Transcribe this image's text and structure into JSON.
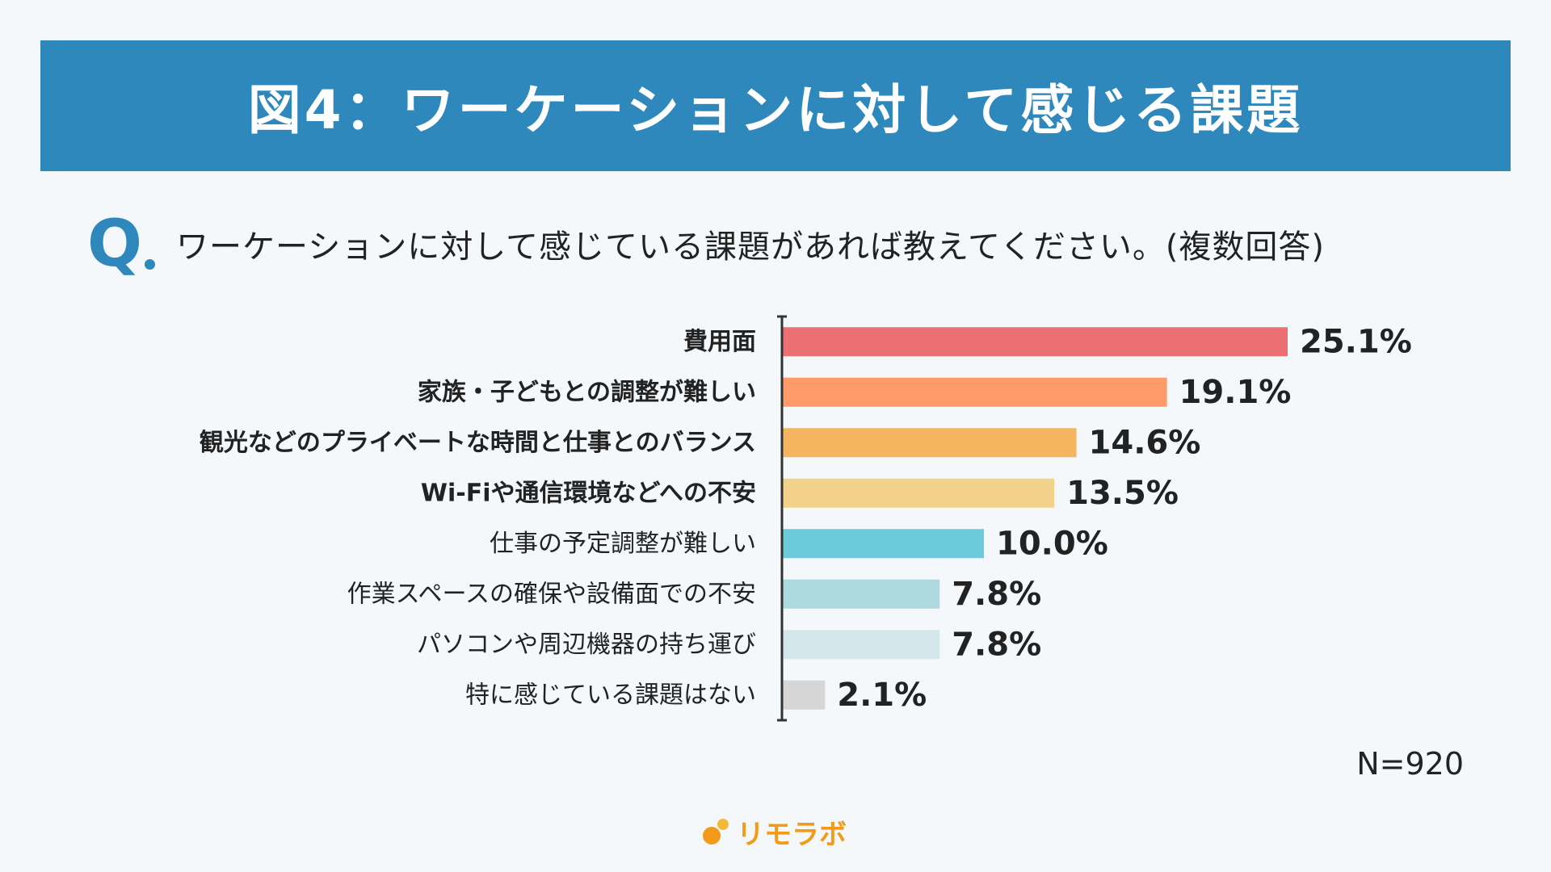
{
  "header": {
    "title": "図4：ワーケーションに対して感じる課題"
  },
  "question": {
    "mark": "Q",
    "text": "ワーケーションに対して感じている課題があれば教えてください。(複数回答)"
  },
  "chart_data": {
    "type": "bar",
    "orientation": "horizontal",
    "title": "図4：ワーケーションに対して感じる課題",
    "xlabel": "",
    "ylabel": "",
    "xlim": [
      0,
      25.1
    ],
    "grid": false,
    "legend": "none",
    "categories": [
      "費用面",
      "家族・子どもとの調整が難しい",
      "観光などのプライベートな時間と仕事とのバランス",
      "Wi-Fiや通信環境などへの不安",
      "仕事の予定調整が難しい",
      "作業スペースの確保や設備面での不安",
      "パソコンや周辺機器の持ち運び",
      "特に感じている課題はない"
    ],
    "values": [
      25.1,
      19.1,
      14.6,
      13.5,
      10.0,
      7.8,
      7.8,
      2.1
    ],
    "value_labels": [
      "25.1%",
      "19.1%",
      "14.6%",
      "13.5%",
      "10.0%",
      "7.8%",
      "7.8%",
      "2.1%"
    ],
    "emphasized": [
      true,
      true,
      true,
      true,
      false,
      false,
      false,
      false
    ],
    "colors": [
      "#ec6f74",
      "#ff9a6b",
      "#f5b560",
      "#f2d28b",
      "#6ccadb",
      "#acd8de",
      "#d3e7eb",
      "#d6d6d6"
    ]
  },
  "footer": {
    "sample_size": "N=920"
  },
  "brand": {
    "name": "リモラボ",
    "accent": "#f29a19"
  }
}
